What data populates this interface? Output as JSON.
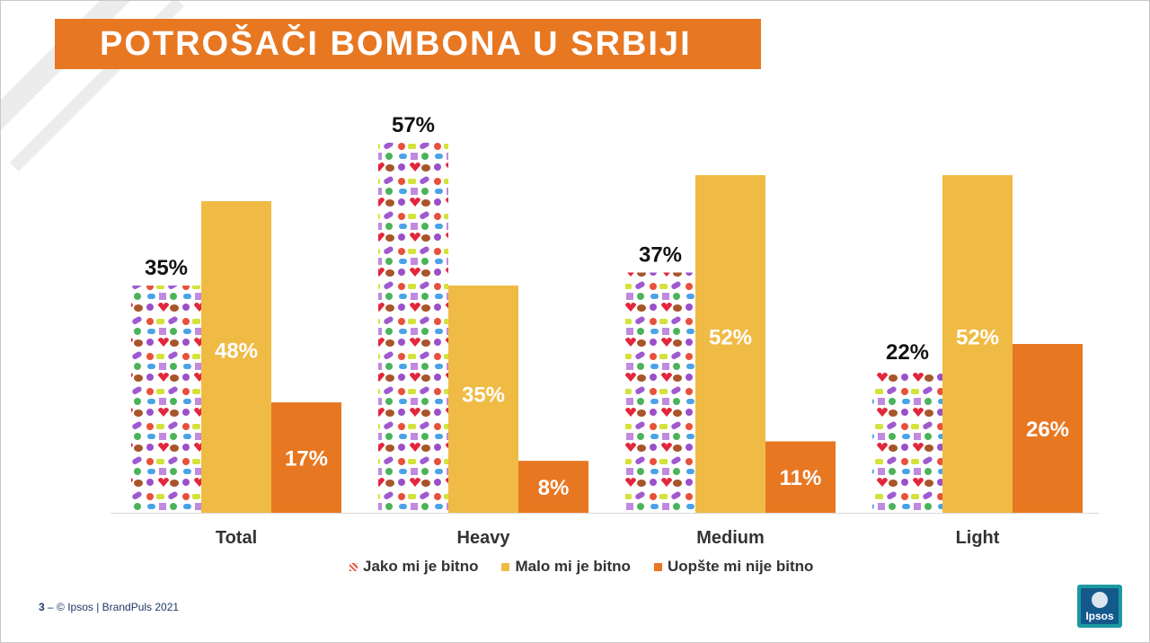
{
  "title": "POTROŠAČI BOMBONA U SRBIJI",
  "chart_data": {
    "type": "bar",
    "categories": [
      "Total",
      "Heavy",
      "Medium",
      "Light"
    ],
    "series": [
      {
        "name": "Jako mi je bitno",
        "values": [
          35,
          57,
          37,
          22
        ],
        "color": "pattern-candy"
      },
      {
        "name": "Malo mi je bitno",
        "values": [
          48,
          35,
          52,
          52
        ],
        "color": "#f0bb45"
      },
      {
        "name": "Uopšte mi nije bitno",
        "values": [
          17,
          8,
          11,
          26
        ],
        "color": "#e87722"
      }
    ],
    "value_labels": [
      [
        "35%",
        "57%",
        "37%",
        "22%"
      ],
      [
        "48%",
        "35%",
        "52%",
        "52%"
      ],
      [
        "17%",
        "8%",
        "11%",
        "26%"
      ]
    ],
    "legend_position": "bottom",
    "grid": false
  },
  "legend": {
    "items": [
      {
        "label": "Jako mi je bitno"
      },
      {
        "label": "Malo mi je bitno"
      },
      {
        "label": "Uopšte mi nije bitno"
      }
    ]
  },
  "footer": {
    "page": "3",
    "text": "–  © Ipsos | BrandPuls 2021"
  },
  "logo": {
    "text": "Ipsos"
  }
}
